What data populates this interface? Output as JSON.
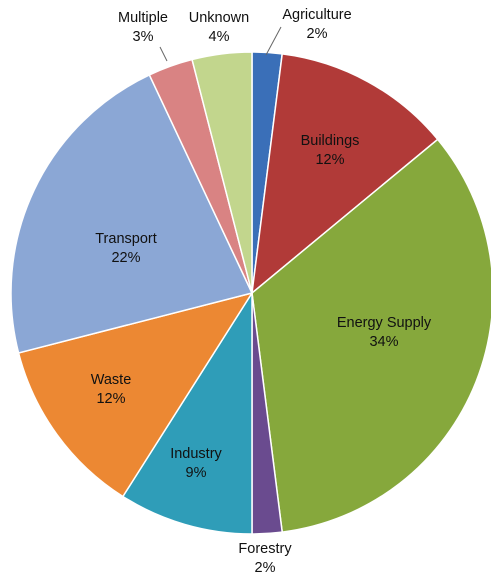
{
  "chart_data": {
    "type": "pie",
    "title": "",
    "start_angle_deg": 0,
    "direction": "clockwise",
    "slices": [
      {
        "label": "Agriculture",
        "value": 2,
        "display": "2%",
        "color": "#3a6fb8"
      },
      {
        "label": "Buildings",
        "value": 12,
        "display": "12%",
        "color": "#b13a38"
      },
      {
        "label": "Energy Supply",
        "value": 34,
        "display": "34%",
        "color": "#86a83c"
      },
      {
        "label": "Forestry",
        "value": 2,
        "display": "2%",
        "color": "#6a4b8f"
      },
      {
        "label": "Industry",
        "value": 9,
        "display": "9%",
        "color": "#2f9db8"
      },
      {
        "label": "Waste",
        "value": 12,
        "display": "12%",
        "color": "#ec8833"
      },
      {
        "label": "Transport",
        "value": 22,
        "display": "22%",
        "color": "#8ba7d5"
      },
      {
        "label": "Multiple",
        "value": 3,
        "display": "3%",
        "color": "#d98383"
      },
      {
        "label": "Unknown",
        "value": 4,
        "display": "4%",
        "color": "#c2d68d"
      }
    ]
  }
}
